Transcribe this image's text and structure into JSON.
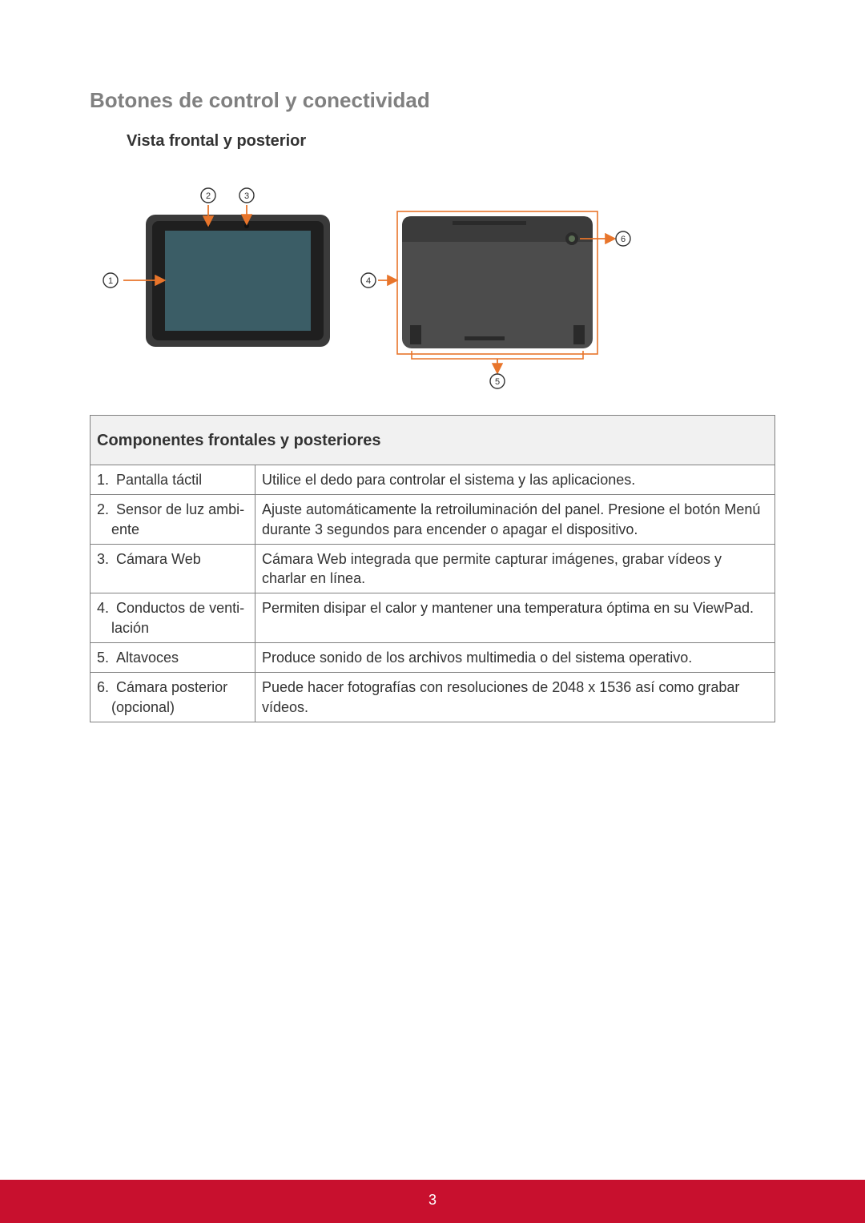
{
  "colors": {
    "headingGray": "#808080",
    "text": "#333333",
    "tableBorder": "#808080",
    "tableHeaderBg": "#f1f1f1",
    "footerBg": "#c8102e",
    "footerText": "#ffffff",
    "callout": "#e8752b",
    "tabletBody": "#3a3a3a",
    "tabletBezel": "#1f1f1f",
    "tabletScreen": "#3b5d66",
    "camera": "#5c6f55",
    "backPanel": "#4c4c4c",
    "backTop": "#3b3b3b"
  },
  "headings": {
    "section": "Botones de control y conectividad",
    "subsection": "Vista frontal y posterior"
  },
  "callouts": {
    "c1": "1",
    "c2": "2",
    "c3": "3",
    "c4": "4",
    "c5": "5",
    "c6": "6"
  },
  "table": {
    "header": "Componentes frontales y posteriores",
    "rows": [
      {
        "num": "1.",
        "label": "Pantalla táctil",
        "label2": "",
        "desc": "Utilice el dedo para controlar el sistema y las aplicaciones."
      },
      {
        "num": "2.",
        "label": "Sensor de luz ambi-",
        "label2": "ente",
        "desc": "Ajuste automáticamente la retroiluminación del panel. Presione el botón Menú durante 3 segundos para encender o apagar el dispositivo."
      },
      {
        "num": "3.",
        "label": "Cámara Web",
        "label2": "",
        "desc": "Cámara Web integrada que permite capturar imágenes, grabar vídeos y charlar en línea."
      },
      {
        "num": "4.",
        "label": "Conductos de venti-",
        "label2": "lación",
        "desc": "Permiten disipar el calor y mantener una temperatura óptima en su ViewPad."
      },
      {
        "num": "5.",
        "label": "Altavoces",
        "label2": "",
        "desc": "Produce sonido de los archivos multimedia o del sistema operativo."
      },
      {
        "num": "6.",
        "label": "Cámara posterior",
        "label2": "(opcional)",
        "desc": "Puede hacer fotografías con resoluciones de 2048 x 1536 así como grabar vídeos."
      }
    ]
  },
  "pageNumber": "3"
}
